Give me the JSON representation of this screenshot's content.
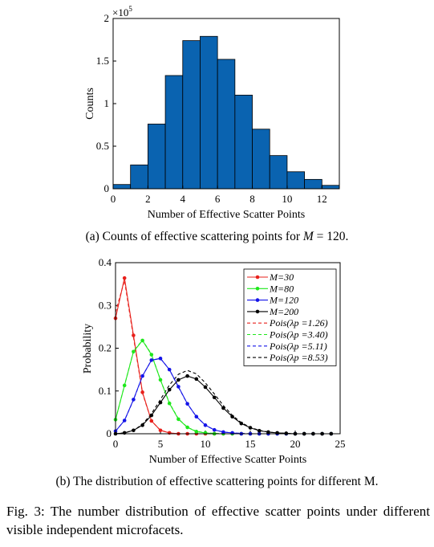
{
  "chart_data": [
    {
      "type": "bar",
      "xlabel": "Number of Effective Scatter Points",
      "ylabel": "Counts",
      "y_exponent_label": "×10",
      "y_exponent_power": "5",
      "xlim": [
        0,
        13
      ],
      "ylim": [
        0,
        2
      ],
      "xticks": [
        "0",
        "2",
        "4",
        "6",
        "8",
        "10",
        "12"
      ],
      "yticks": [
        "0",
        "0.5",
        "1",
        "1.5",
        "2"
      ],
      "bar_color": "#0a63b0",
      "bin_starts": [
        0,
        1,
        2,
        3,
        4,
        5,
        6,
        7,
        8,
        9,
        10,
        11,
        12
      ],
      "values": [
        0.05,
        0.28,
        0.76,
        1.33,
        1.74,
        1.79,
        1.52,
        1.1,
        0.7,
        0.39,
        0.2,
        0.11,
        0.04
      ]
    },
    {
      "type": "line",
      "xlabel": "Number of Effective Scatter Points",
      "ylabel": "Probability",
      "xlim": [
        0,
        25
      ],
      "ylim": [
        0,
        0.4
      ],
      "xticks": [
        "0",
        "5",
        "10",
        "15",
        "20",
        "25"
      ],
      "yticks": [
        "0",
        "0.1",
        "0.2",
        "0.3",
        "0.4"
      ],
      "legend_position": "top-right",
      "series": [
        {
          "name": "M=30",
          "color": "#e8201b",
          "style": "solid-markers",
          "x": [
            0,
            1,
            2,
            3,
            4,
            5,
            6,
            7,
            8,
            9,
            10,
            11,
            12,
            13,
            14,
            15,
            16,
            17,
            18,
            19,
            20,
            21,
            22,
            23,
            24
          ],
          "values": [
            0.27,
            0.364,
            0.23,
            0.097,
            0.03,
            0.008,
            0.002,
            0,
            0,
            0,
            0,
            0,
            0,
            0,
            0,
            0,
            0,
            0,
            0,
            0,
            0,
            0,
            0,
            0,
            0
          ]
        },
        {
          "name": "M=80",
          "color": "#1ee81b",
          "style": "solid-markers",
          "x": [
            0,
            1,
            2,
            3,
            4,
            5,
            6,
            7,
            8,
            9,
            10,
            11,
            12,
            13,
            14,
            15,
            16,
            17,
            18,
            19,
            20,
            21,
            22,
            23,
            24
          ],
          "values": [
            0.033,
            0.113,
            0.192,
            0.218,
            0.185,
            0.126,
            0.071,
            0.034,
            0.015,
            0.005,
            0.002,
            0,
            0,
            0,
            0,
            0,
            0,
            0,
            0,
            0,
            0,
            0,
            0,
            0,
            0
          ]
        },
        {
          "name": "M=120",
          "color": "#1414e8",
          "style": "solid-markers",
          "x": [
            0,
            1,
            2,
            3,
            4,
            5,
            6,
            7,
            8,
            9,
            10,
            11,
            12,
            13,
            14,
            15,
            16,
            17,
            18,
            19,
            20,
            21,
            22,
            23,
            24
          ],
          "values": [
            0.006,
            0.031,
            0.08,
            0.135,
            0.172,
            0.176,
            0.15,
            0.11,
            0.07,
            0.04,
            0.02,
            0.009,
            0.004,
            0.002,
            0,
            0,
            0,
            0,
            0,
            0,
            0,
            0,
            0,
            0,
            0
          ]
        },
        {
          "name": "M=200",
          "color": "#000000",
          "style": "solid-markers",
          "x": [
            0,
            1,
            2,
            3,
            4,
            5,
            6,
            7,
            8,
            9,
            10,
            11,
            12,
            13,
            14,
            15,
            16,
            17,
            18,
            19,
            20,
            21,
            22,
            23,
            24
          ],
          "values": [
            0,
            0.002,
            0.008,
            0.02,
            0.043,
            0.073,
            0.103,
            0.126,
            0.135,
            0.128,
            0.109,
            0.085,
            0.06,
            0.04,
            0.024,
            0.014,
            0.007,
            0.004,
            0.002,
            0.001,
            0,
            0,
            0,
            0,
            0
          ]
        },
        {
          "name": "Pois(λp =1.26)",
          "color": "#e8201b",
          "style": "dashed",
          "x": [
            0,
            1,
            2,
            3,
            4,
            5,
            6,
            7,
            8
          ],
          "values": [
            0.284,
            0.358,
            0.225,
            0.095,
            0.03,
            0.008,
            0.002,
            0,
            0
          ]
        },
        {
          "name": "Pois(λp =3.40)",
          "color": "#1ee81b",
          "style": "dashed",
          "x": [
            0,
            1,
            2,
            3,
            4,
            5,
            6,
            7,
            8,
            9,
            10,
            11,
            12
          ],
          "values": [
            0.033,
            0.113,
            0.193,
            0.219,
            0.186,
            0.126,
            0.072,
            0.035,
            0.015,
            0.006,
            0.002,
            0.001,
            0
          ]
        },
        {
          "name": "Pois(λp =5.11)",
          "color": "#1414e8",
          "style": "dashed",
          "x": [
            0,
            1,
            2,
            3,
            4,
            5,
            6,
            7,
            8,
            9,
            10,
            11,
            12,
            13,
            14,
            15
          ],
          "values": [
            0.006,
            0.031,
            0.079,
            0.135,
            0.172,
            0.176,
            0.15,
            0.109,
            0.07,
            0.04,
            0.02,
            0.009,
            0.004,
            0.002,
            0.001,
            0
          ]
        },
        {
          "name": "Pois(λp =8.53)",
          "color": "#000000",
          "style": "dashed",
          "x": [
            0,
            1,
            2,
            3,
            4,
            5,
            6,
            7,
            8,
            9,
            10,
            11,
            12,
            13,
            14,
            15,
            16,
            17,
            18,
            19,
            20,
            21,
            22,
            23,
            24
          ],
          "values": [
            0,
            0.002,
            0.008,
            0.022,
            0.047,
            0.08,
            0.114,
            0.139,
            0.148,
            0.14,
            0.119,
            0.093,
            0.066,
            0.043,
            0.026,
            0.015,
            0.008,
            0.004,
            0.002,
            0.001,
            0,
            0,
            0,
            0,
            0
          ]
        }
      ]
    }
  ],
  "captions": {
    "a_prefix": "(a) Counts of effective scattering points for ",
    "a_var": "M",
    "a_suffix": " = 120.",
    "b": "(b) The distribution of effective scattering points for different M.",
    "figure": "Fig. 3: The number distribution of effective scatter points under different visible independent microfacets."
  }
}
